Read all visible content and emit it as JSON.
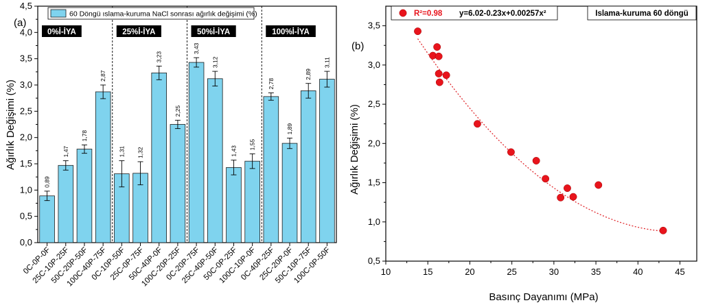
{
  "colors": {
    "bar_fill": "#7fd3ee",
    "bar_stroke": "#1b1b1b",
    "point_fill": "#e8141c",
    "fit_line": "#e0272c",
    "group_label_bg": "#000000",
    "group_label_text": "#ffffff",
    "frame": "#000000"
  },
  "chart_data": [
    {
      "type": "bar",
      "panel_label": "(a)",
      "legend": "60 Döngü ıslama-kuruma NaCl sonrası ağırlık değişimi (%)",
      "legend_position": "top",
      "ylabel": "Ağırlık Değişimi (%)",
      "xlabel": "",
      "ylim": [
        0,
        4.5
      ],
      "yticks": [
        "0,0",
        "0,5",
        "1,0",
        "1,5",
        "2,0",
        "2,5",
        "3,0",
        "3,5",
        "4,0",
        "4,5"
      ],
      "grid": false,
      "groups": [
        {
          "label": "0%İ-İYA",
          "categories": [
            "0C-0P-0F",
            "25C-10P-25F",
            "50C-20P-50F",
            "100C-40P-75F"
          ]
        },
        {
          "label": "25%İ-İYA",
          "categories": [
            "0C-10P-50F",
            "25C-0P-75F",
            "50C-40P-0F",
            "100C-20P-25F"
          ]
        },
        {
          "label": "50%İ-İYA",
          "categories": [
            "0C-20P-75F",
            "25C-40P-50F",
            "50C-0P-25F",
            "100C-10P-0F"
          ]
        },
        {
          "label": "100%İ-İYA",
          "categories": [
            "0C-40P-25F",
            "25C-20P-0F",
            "50C-10P-75F",
            "100C-0P-50F"
          ]
        }
      ],
      "values": [
        0.89,
        1.47,
        1.78,
        2.87,
        1.31,
        1.32,
        3.23,
        2.25,
        3.43,
        3.12,
        1.43,
        1.55,
        2.78,
        1.89,
        2.89,
        3.11
      ],
      "value_labels": [
        "0,89",
        "1,47",
        "1,78",
        "2,87",
        "1,31",
        "1,32",
        "3,23",
        "2,25",
        "3,43",
        "3,12",
        "1,43",
        "1,55",
        "2,78",
        "1,89",
        "2,89",
        "3,11"
      ],
      "errors": [
        0.09,
        0.09,
        0.08,
        0.13,
        0.25,
        0.22,
        0.13,
        0.08,
        0.09,
        0.14,
        0.14,
        0.14,
        0.07,
        0.1,
        0.14,
        0.15
      ]
    },
    {
      "type": "scatter",
      "panel_label": "(b)",
      "title_box": "Islama-kuruma 60 döngü",
      "legend_r2": "R²=0.98",
      "legend_equation": "y=6.02-0.23x+0.00257x²",
      "legend_position": "top-left",
      "xlabel": "Basınç Dayanımı (MPa)",
      "ylabel": "Ağırlık Değişimi (%)",
      "xlim": [
        10,
        47
      ],
      "ylim": [
        0.5,
        3.75
      ],
      "xticks": [
        "10",
        "15",
        "20",
        "25",
        "30",
        "35",
        "40",
        "45"
      ],
      "yticks": [
        "0,5",
        "1,0",
        "1,5",
        "2,0",
        "2,5",
        "3,0",
        "3,5"
      ],
      "grid": false,
      "points": [
        {
          "x": 13.8,
          "y": 3.43
        },
        {
          "x": 15.6,
          "y": 3.12
        },
        {
          "x": 16.1,
          "y": 3.23
        },
        {
          "x": 16.3,
          "y": 3.11
        },
        {
          "x": 16.3,
          "y": 2.89
        },
        {
          "x": 16.4,
          "y": 2.78
        },
        {
          "x": 17.2,
          "y": 2.87
        },
        {
          "x": 20.9,
          "y": 2.25
        },
        {
          "x": 24.9,
          "y": 1.89
        },
        {
          "x": 27.9,
          "y": 1.78
        },
        {
          "x": 29.0,
          "y": 1.55
        },
        {
          "x": 30.8,
          "y": 1.31
        },
        {
          "x": 31.6,
          "y": 1.43
        },
        {
          "x": 32.3,
          "y": 1.32
        },
        {
          "x": 35.3,
          "y": 1.47
        },
        {
          "x": 43.0,
          "y": 0.89
        }
      ],
      "fit": {
        "a": 6.02,
        "b": -0.23,
        "c": 0.00257,
        "x_range": [
          13.8,
          43.0
        ]
      }
    }
  ]
}
